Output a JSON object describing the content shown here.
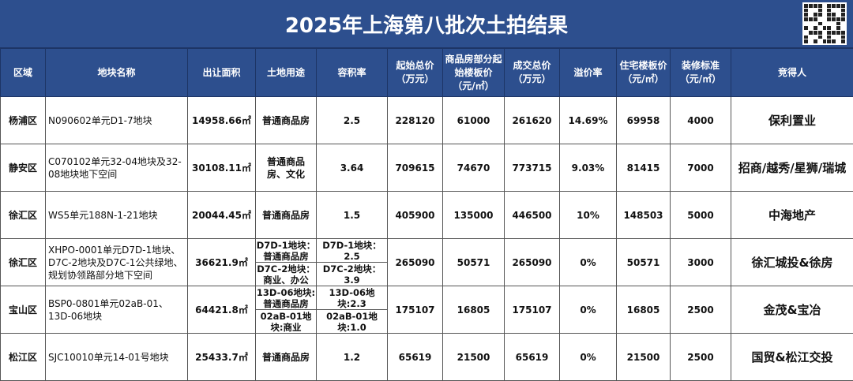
{
  "title": "2025年上海第八批次土拍结果",
  "qr_icon": "qr-code-icon",
  "headers": [
    "区域",
    "地块名称",
    "出让面积",
    "土地用途",
    "容积率",
    "起始总价（万元）",
    "商品房部分起始楼板价（元/㎡）",
    "成交总价（万元）",
    "溢价率",
    "住宅楼板价（元/㎡）",
    "装修标准（元/㎡）",
    "竞得人"
  ],
  "rows": [
    {
      "district": "杨浦区",
      "name": "N090602单元D1-7地块",
      "area": "14958.66㎡",
      "use": [
        "普通商品房"
      ],
      "far": [
        "2.5"
      ],
      "start_total": "228120",
      "start_floor": "61000",
      "deal_total": "261620",
      "premium": "14.69%",
      "res_floor": "69958",
      "decor": "4000",
      "winner": "保利置业"
    },
    {
      "district": "静安区",
      "name": "C070102单元32-04地块及32-08地块地下空间",
      "area": "30108.11㎡",
      "use": [
        "普通商品房、文化"
      ],
      "far": [
        "3.64"
      ],
      "start_total": "709615",
      "start_floor": "74670",
      "deal_total": "773715",
      "premium": "9.03%",
      "res_floor": "81415",
      "decor": "7000",
      "winner": "招商/越秀/星狮/瑞城"
    },
    {
      "district": "徐汇区",
      "name": "WS5单元188N-1-21地块",
      "area": "20044.45㎡",
      "use": [
        "普通商品房"
      ],
      "far": [
        "1.5"
      ],
      "start_total": "405900",
      "start_floor": "135000",
      "deal_total": "446500",
      "premium": "10%",
      "res_floor": "148503",
      "decor": "5000",
      "winner": "中海地产"
    },
    {
      "district": "徐汇区",
      "name": "XHPO-0001单元D7D-1地块、D7C-2地块及D7C-1公共绿地、规划协领路部分地下空间",
      "area": "36621.9㎡",
      "use": [
        "D7D-1地块：普通商品房",
        "D7C-2地块：商业、办公"
      ],
      "far": [
        "D7D-1地块：2.5",
        "D7C-2地块：3.9"
      ],
      "start_total": "265090",
      "start_floor": "50571",
      "deal_total": "265090",
      "premium": "0%",
      "res_floor": "50571",
      "decor": "3000",
      "winner": "徐汇城投&徐房"
    },
    {
      "district": "宝山区",
      "name": "BSP0-0801单元02aB-01、13D-06地块",
      "area": "64421.8㎡",
      "use": [
        "13D-06地块:普通商品房",
        "02aB-01地块:商业"
      ],
      "far": [
        "13D-06地块:2.3",
        "02aB-01地块:1.0"
      ],
      "start_total": "175107",
      "start_floor": "16805",
      "deal_total": "175107",
      "premium": "0%",
      "res_floor": "16805",
      "decor": "2500",
      "winner": "金茂&宝冶"
    },
    {
      "district": "松江区",
      "name": "SJC10010单元14-01号地块",
      "area": "25433.7㎡",
      "use": [
        "普通商品房"
      ],
      "far": [
        "1.2"
      ],
      "start_total": "65619",
      "start_floor": "21500",
      "deal_total": "65619",
      "premium": "0%",
      "res_floor": "21500",
      "decor": "2500",
      "winner": "国贸&松江交投"
    }
  ]
}
